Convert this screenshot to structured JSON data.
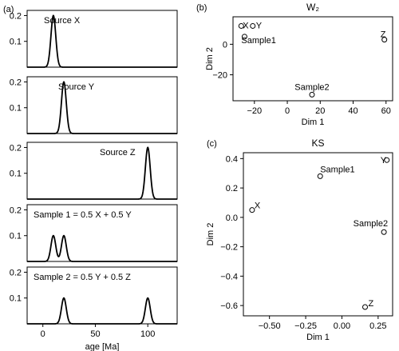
{
  "chart_data": [
    {
      "type": "line",
      "panel_label": "(a)",
      "xlabel": "age [Ma]",
      "x_ticks": [
        0,
        50,
        100
      ],
      "xlim": [
        -15,
        128
      ],
      "subplots": [
        {
          "label": "Source X",
          "ylim": [
            0,
            0.22
          ],
          "y_ticks": [
            0.1,
            0.2
          ],
          "peaks": [
            {
              "center": 10,
              "height": 0.2
            }
          ]
        },
        {
          "label": "Source Y",
          "ylim": [
            0,
            0.22
          ],
          "y_ticks": [
            0.1,
            0.2
          ],
          "peaks": [
            {
              "center": 20,
              "height": 0.2
            }
          ]
        },
        {
          "label": "Source Z",
          "ylim": [
            0,
            0.22
          ],
          "y_ticks": [
            0.1,
            0.2
          ],
          "peaks": [
            {
              "center": 100,
              "height": 0.2
            }
          ]
        },
        {
          "label": "Sample 1 = 0.5 X + 0.5 Y",
          "ylim": [
            0,
            0.22
          ],
          "y_ticks": [
            0.1,
            0.2
          ],
          "peaks": [
            {
              "center": 10,
              "height": 0.1
            },
            {
              "center": 20,
              "height": 0.1
            }
          ]
        },
        {
          "label": "Sample 2 = 0.5 Y + 0.5 Z",
          "ylim": [
            0,
            0.22
          ],
          "y_ticks": [
            0.1,
            0.2
          ],
          "peaks": [
            {
              "center": 20,
              "height": 0.1
            },
            {
              "center": 100,
              "height": 0.1
            }
          ]
        }
      ]
    },
    {
      "type": "scatter",
      "panel_label": "(b)",
      "title": "W₂",
      "xlabel": "Dim 1",
      "ylabel": "Dim 2",
      "xlim": [
        -33,
        64
      ],
      "ylim": [
        -37,
        18
      ],
      "x_ticks": [
        -20,
        0,
        20,
        40,
        60
      ],
      "y_ticks": [
        -20,
        0
      ],
      "points": [
        {
          "label": "X",
          "x": -28,
          "y": 12
        },
        {
          "label": "Y",
          "x": -21,
          "y": 12
        },
        {
          "label": "Sample1",
          "x": -26,
          "y": 5
        },
        {
          "label": "Z",
          "x": 59,
          "y": 3
        },
        {
          "label": "Sample2",
          "x": 15,
          "y": -33
        }
      ]
    },
    {
      "type": "scatter",
      "panel_label": "(c)",
      "title": "KS",
      "xlabel": "Dim 1",
      "ylabel": "Dim 2",
      "xlim": [
        -0.68,
        0.35
      ],
      "ylim": [
        -0.67,
        0.44
      ],
      "x_ticks": [
        -0.5,
        -0.25,
        0.0,
        0.25
      ],
      "x_tick_labels": [
        "−0.50",
        "−0.25",
        "0.00",
        "0.25"
      ],
      "y_ticks": [
        -0.6,
        -0.4,
        -0.2,
        0.0,
        0.2,
        0.4
      ],
      "y_tick_labels": [
        "−0.6",
        "−0.4",
        "−0.2",
        "0.0",
        "0.2",
        "0.4"
      ],
      "points": [
        {
          "label": "X",
          "x": -0.62,
          "y": 0.05
        },
        {
          "label": "Sample1",
          "x": -0.15,
          "y": 0.28
        },
        {
          "label": "Y",
          "x": 0.31,
          "y": 0.39
        },
        {
          "label": "Sample2",
          "x": 0.29,
          "y": -0.1
        },
        {
          "label": "Z",
          "x": 0.16,
          "y": -0.61
        }
      ]
    }
  ]
}
